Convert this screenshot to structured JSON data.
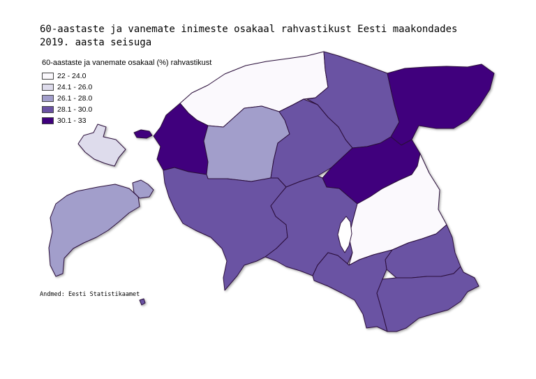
{
  "title_lines": [
    "60-aastaste ja vanemate inimeste osakaal rahvastikust Eesti maakondades",
    "2019. aasta seisuga"
  ],
  "legend": {
    "title": "60-aastaste ja vanemate osakaal (%) rahvastikust",
    "classes": [
      {
        "label": "22 - 24.0",
        "color": "#fbf9fd"
      },
      {
        "label": "24.1 - 26.0",
        "color": "#dedcec"
      },
      {
        "label": "26.1 - 28.0",
        "color": "#a29ecb"
      },
      {
        "label": "28.1 - 30.0",
        "color": "#6a52a3"
      },
      {
        "label": "30.1 - 33",
        "color": "#3f007d"
      }
    ]
  },
  "source": "Andmed: Eesti Statistikaamet",
  "counties_class_index": {
    "harju": 0,
    "hiiu": 1,
    "saare": 2,
    "laane": 4,
    "rapla": 2,
    "laane-viru": 3,
    "ida-viru": 4,
    "jarva": 3,
    "jogeva": 4,
    "parnu": 3,
    "viljandi": 3,
    "tartu": 0,
    "polva": 3,
    "valga": 3,
    "voru": 3
  }
}
